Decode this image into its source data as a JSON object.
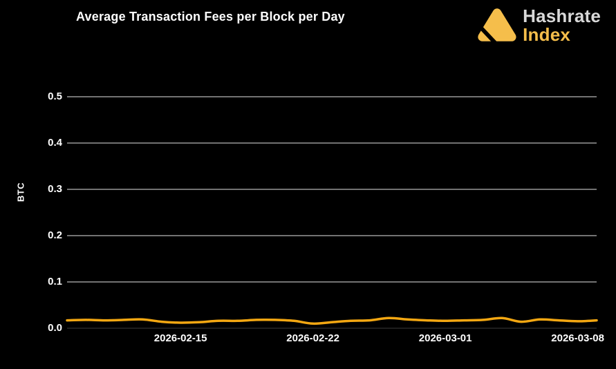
{
  "header": {
    "title": "Average Transaction Fees per Block per Day",
    "logo": {
      "line1": "Hashrate",
      "line2": "Index"
    }
  },
  "colors": {
    "background": "#000000",
    "line": "#f3a712",
    "grid": "#e6e6e6",
    "zero_grid": "#3a3a3a",
    "text": "#ffffff",
    "logo_amber": "#f5be4b",
    "logo_gray": "#d9d9d9"
  },
  "chart_data": {
    "type": "line",
    "title": "Average Transaction Fees per Block per Day",
    "xlabel": "",
    "ylabel": "BTC",
    "ylim": [
      0,
      0.52
    ],
    "grid": true,
    "legend": "none",
    "x": [
      "2026-02-09",
      "2026-02-10",
      "2026-02-11",
      "2026-02-12",
      "2026-02-13",
      "2026-02-14",
      "2026-02-15",
      "2026-02-16",
      "2026-02-17",
      "2026-02-18",
      "2026-02-19",
      "2026-02-20",
      "2026-02-21",
      "2026-02-22",
      "2026-02-23",
      "2026-02-24",
      "2026-02-25",
      "2026-02-26",
      "2026-02-27",
      "2026-02-28",
      "2026-03-01",
      "2026-03-02",
      "2026-03-03",
      "2026-03-04",
      "2026-03-05",
      "2026-03-06",
      "2026-03-07",
      "2026-03-08",
      "2026-03-09"
    ],
    "series": [
      {
        "name": "Average Transaction Fees per Block",
        "color": "#f3a712",
        "values": [
          0.017,
          0.018,
          0.017,
          0.018,
          0.019,
          0.014,
          0.012,
          0.013,
          0.016,
          0.016,
          0.018,
          0.018,
          0.016,
          0.01,
          0.013,
          0.016,
          0.017,
          0.022,
          0.019,
          0.017,
          0.016,
          0.017,
          0.018,
          0.022,
          0.014,
          0.019,
          0.017,
          0.015,
          0.017
        ]
      }
    ],
    "yticks": [
      0.0,
      0.1,
      0.2,
      0.3,
      0.4,
      0.5
    ],
    "xticks": [
      {
        "label": "2026-02-15",
        "index": 6
      },
      {
        "label": "2026-02-22",
        "index": 13
      },
      {
        "label": "2026-03-01",
        "index": 20
      },
      {
        "label": "2026-03-08",
        "index": 27
      }
    ]
  }
}
